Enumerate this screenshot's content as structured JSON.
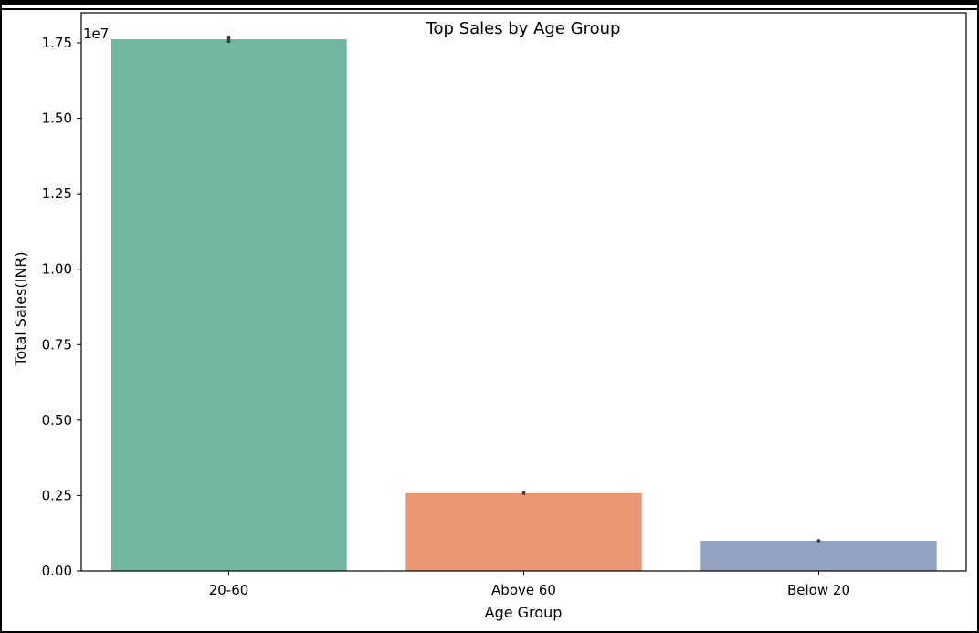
{
  "chart_data": {
    "type": "bar",
    "title": "Top Sales by Age Group",
    "xlabel": "Age Group",
    "ylabel": "Total Sales(INR)",
    "offset_text": "1e7",
    "categories": [
      "20-60",
      "Above 60",
      "Below 20"
    ],
    "values": [
      1.762,
      0.258,
      0.1
    ],
    "error_bars": [
      [
        1.75,
        1.774
      ],
      [
        0.252,
        0.264
      ],
      [
        0.095,
        0.105
      ]
    ],
    "colors": [
      "#72b5a0",
      "#e99675",
      "#94a3c4"
    ],
    "ylim": [
      0,
      1.85
    ],
    "yticks": [
      0.0,
      0.25,
      0.5,
      0.75,
      1.0,
      1.25,
      1.5,
      1.75
    ],
    "ytick_labels": [
      "0.00",
      "0.25",
      "0.50",
      "0.75",
      "1.00",
      "1.25",
      "1.50",
      "1.75"
    ],
    "grid": false,
    "legend": "none"
  }
}
